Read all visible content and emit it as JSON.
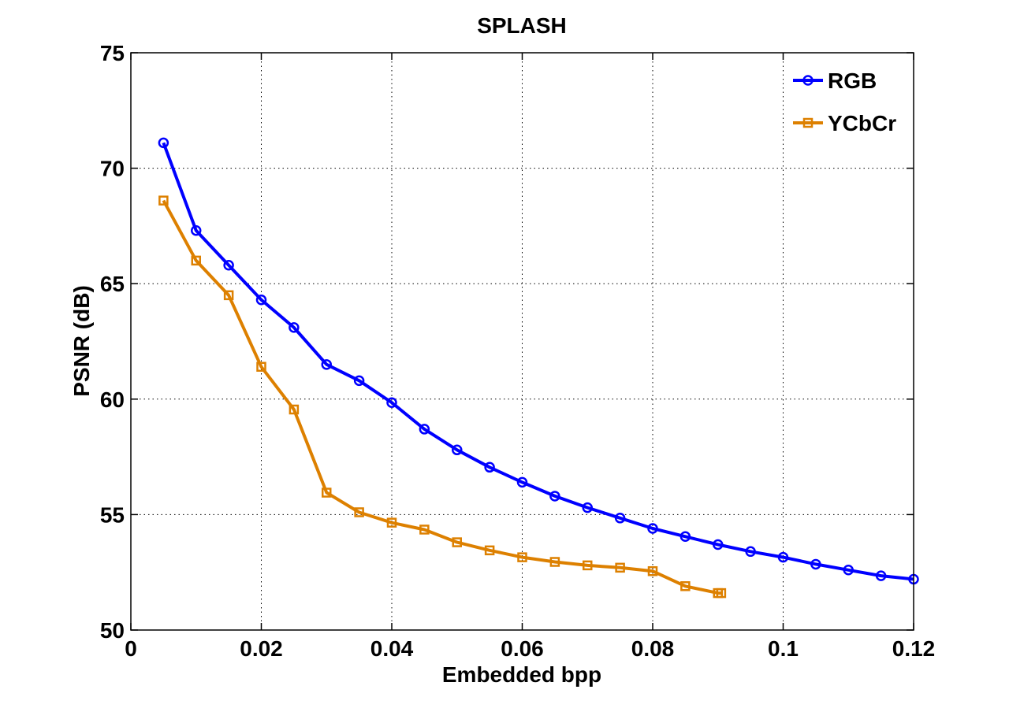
{
  "chart_data": {
    "type": "line",
    "title": "SPLASH",
    "xlabel": "Embedded bpp",
    "ylabel": "PSNR (dB)",
    "xlim": [
      0,
      0.12
    ],
    "ylim": [
      50,
      75
    ],
    "xticks": [
      0,
      0.02,
      0.04,
      0.06,
      0.08,
      0.1,
      0.12
    ],
    "xtick_labels": [
      "0",
      "0.02",
      "0.04",
      "0.06",
      "0.08",
      "0.1",
      "0.12"
    ],
    "yticks": [
      50,
      55,
      60,
      65,
      70,
      75
    ],
    "ytick_labels": [
      "50",
      "55",
      "60",
      "65",
      "70",
      "75"
    ],
    "grid": true,
    "legend_position": "top-right",
    "series": [
      {
        "name": "RGB",
        "color": "#0000ff",
        "marker": "circle",
        "x": [
          0.005,
          0.01,
          0.015,
          0.02,
          0.025,
          0.03,
          0.035,
          0.04,
          0.045,
          0.05,
          0.055,
          0.06,
          0.065,
          0.07,
          0.075,
          0.08,
          0.085,
          0.09,
          0.095,
          0.1,
          0.105,
          0.11,
          0.115,
          0.12
        ],
        "y": [
          71.1,
          67.3,
          65.8,
          64.3,
          63.1,
          61.5,
          60.8,
          59.85,
          58.7,
          57.8,
          57.05,
          56.4,
          55.8,
          55.3,
          54.85,
          54.4,
          54.05,
          53.7,
          53.4,
          53.15,
          52.85,
          52.6,
          52.35,
          52.2
        ]
      },
      {
        "name": "YCbCr",
        "color": "#dd8000",
        "marker": "square",
        "x": [
          0.005,
          0.01,
          0.015,
          0.02,
          0.025,
          0.03,
          0.035,
          0.04,
          0.045,
          0.05,
          0.055,
          0.06,
          0.065,
          0.07,
          0.075,
          0.08,
          0.085,
          0.09,
          0.0905
        ],
        "y": [
          68.6,
          66.0,
          64.5,
          61.4,
          59.55,
          55.95,
          55.1,
          54.65,
          54.35,
          53.8,
          53.45,
          53.15,
          52.95,
          52.8,
          52.7,
          52.55,
          51.9,
          51.6,
          51.6
        ]
      }
    ]
  }
}
